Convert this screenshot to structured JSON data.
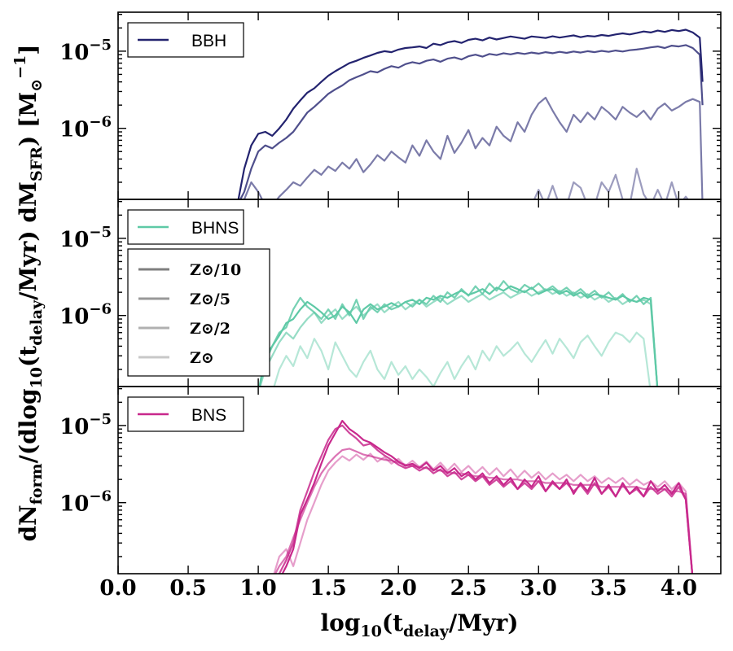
{
  "chart_data": {
    "type": "line",
    "xlabel": "log10(t_delay/Myr)",
    "ylabel": "dN_form/(dlog10(t_delay/Myr) dM_SFR)  [M_sun^-1]",
    "x_ticks": [
      "0.0",
      "0.5",
      "1.0",
      "1.5",
      "2.0",
      "2.5",
      "3.0",
      "3.5",
      "4.0"
    ],
    "xlim": [
      0.0,
      4.3
    ],
    "ylim": [
      1.2e-07,
      3.2e-05
    ],
    "y_ticks": [
      {
        "value": 1e-05,
        "base": "10",
        "exp": "−5"
      },
      {
        "value": 1e-06,
        "base": "10",
        "exp": "−6"
      }
    ],
    "metallicity_legend": [
      {
        "label": "Z⊙/10",
        "color": "#7f7f7f"
      },
      {
        "label": "Z⊙/5",
        "color": "#999999"
      },
      {
        "label": "Z⊙/2",
        "color": "#b0b0b0"
      },
      {
        "label": "Z⊙",
        "color": "#c8c8c8"
      }
    ],
    "x_sample": [
      0.85,
      0.9,
      0.95,
      1.0,
      1.05,
      1.1,
      1.15,
      1.2,
      1.25,
      1.3,
      1.35,
      1.4,
      1.45,
      1.5,
      1.55,
      1.6,
      1.65,
      1.7,
      1.75,
      1.8,
      1.85,
      1.9,
      1.95,
      2.0,
      2.05,
      2.1,
      2.15,
      2.2,
      2.25,
      2.3,
      2.35,
      2.4,
      2.45,
      2.5,
      2.55,
      2.6,
      2.65,
      2.7,
      2.75,
      2.8,
      2.85,
      2.9,
      2.95,
      3.0,
      3.05,
      3.1,
      3.15,
      3.2,
      3.25,
      3.3,
      3.35,
      3.4,
      3.45,
      3.5,
      3.55,
      3.6,
      3.65,
      3.7,
      3.75,
      3.8,
      3.85,
      3.9,
      3.95,
      4.0,
      4.05,
      4.1,
      4.15,
      4.17
    ],
    "panels": [
      {
        "name": "BBH",
        "color": "#23236f",
        "series": [
          {
            "metallicity": "Z⊙/10",
            "opacity": 1.0,
            "x_start": 0.85,
            "values": [
              1e-07,
              3e-07,
              6e-07,
              8.5e-07,
              9e-07,
              8e-07,
              1e-06,
              1.3e-06,
              1.8e-06,
              2.3e-06,
              2.9e-06,
              3.3e-06,
              4e-06,
              4.8e-06,
              5.5e-06,
              6.2e-06,
              7e-06,
              7.5e-06,
              8.2e-06,
              8.8e-06,
              9.5e-06,
              1e-05,
              9.7e-06,
              1.05e-05,
              1.1e-05,
              1.12e-05,
              1.15e-05,
              1.1e-05,
              1.25e-05,
              1.2e-05,
              1.3e-05,
              1.35e-05,
              1.28e-05,
              1.4e-05,
              1.45e-05,
              1.38e-05,
              1.5e-05,
              1.42e-05,
              1.48e-05,
              1.55e-05,
              1.5e-05,
              1.45e-05,
              1.55e-05,
              1.52e-05,
              1.48e-05,
              1.56e-05,
              1.5e-05,
              1.55e-05,
              1.6e-05,
              1.52e-05,
              1.58e-05,
              1.55e-05,
              1.62e-05,
              1.58e-05,
              1.65e-05,
              1.7e-05,
              1.65e-05,
              1.72e-05,
              1.8e-05,
              1.75e-05,
              1.85e-05,
              1.78e-05,
              1.88e-05,
              1.82e-05,
              1.9e-05,
              1.75e-05,
              1.5e-05,
              4e-06
            ]
          },
          {
            "metallicity": "Z⊙/5",
            "opacity": 0.8,
            "x_start": 0.85,
            "values": [
              1e-07,
              1.5e-07,
              3e-07,
              5e-07,
              6e-07,
              5.5e-07,
              6.5e-07,
              7.5e-07,
              9e-07,
              1.2e-06,
              1.6e-06,
              1.9e-06,
              2.3e-06,
              2.8e-06,
              3.2e-06,
              3.6e-06,
              4.2e-06,
              4.6e-06,
              5e-06,
              5.5e-06,
              5.3e-06,
              5.9e-06,
              6.4e-06,
              6.1e-06,
              6.8e-06,
              7.2e-06,
              6.9e-06,
              7.5e-06,
              7.8e-06,
              7.3e-06,
              8e-06,
              8.3e-06,
              7.8e-06,
              8.6e-06,
              9e-06,
              8.5e-06,
              9.2e-06,
              8.9e-06,
              9.4e-06,
              9.1e-06,
              9.5e-06,
              9.2e-06,
              9.6e-06,
              9.3e-06,
              9.7e-06,
              9.4e-06,
              9.8e-06,
              9.5e-06,
              9.9e-06,
              9.6e-06,
              1e-05,
              9.7e-06,
              1.01e-05,
              9.8e-06,
              1.02e-05,
              9.9e-06,
              1.03e-05,
              1.05e-05,
              1.08e-05,
              1.12e-05,
              1.15e-05,
              1.1e-05,
              1.18e-05,
              1.15e-05,
              1.2e-05,
              1.1e-05,
              9e-06,
              2e-06
            ]
          },
          {
            "metallicity": "Z⊙/2",
            "opacity": 0.6,
            "x_start": 0.85,
            "values": [
              1e-07,
              1.2e-07,
              2e-07,
              1.5e-07,
              1e-07,
              1e-07,
              1.3e-07,
              1.6e-07,
              2e-07,
              1.8e-07,
              2.3e-07,
              2.9e-07,
              2.5e-07,
              3.2e-07,
              2.8e-07,
              3.6e-07,
              3e-07,
              4e-07,
              2.7e-07,
              3.4e-07,
              4.5e-07,
              3.8e-07,
              5e-07,
              4.2e-07,
              3.6e-07,
              6e-07,
              4.4e-07,
              7e-07,
              5e-07,
              4e-07,
              8e-07,
              4.8e-07,
              6.5e-07,
              9.5e-07,
              5.5e-07,
              7.5e-07,
              6e-07,
              1.05e-06,
              8e-07,
              6.8e-07,
              1.2e-06,
              9e-07,
              1.5e-06,
              2.1e-06,
              2.5e-06,
              1.7e-06,
              1.2e-06,
              9e-07,
              1.5e-06,
              1.2e-06,
              1.6e-06,
              1.3e-06,
              1.9e-06,
              1.6e-06,
              1.3e-06,
              1.9e-06,
              1.6e-06,
              1.4e-06,
              1.7e-06,
              1.3e-06,
              1.8e-06,
              2.1e-06,
              1.7e-06,
              1.9e-06,
              2.2e-06,
              2.4e-06,
              2.2e-06,
              1e-07
            ]
          },
          {
            "metallicity": "Z⊙",
            "opacity": 0.45,
            "x_start": 2.95,
            "values": [
              1e-07,
              1.6e-07,
              1e-07,
              1.8e-07,
              1e-07,
              1e-07,
              2e-07,
              1.7e-07,
              1e-07,
              1e-07,
              2e-07,
              1.5e-07,
              2.5e-07,
              1.2e-07,
              1e-07,
              3e-07,
              1.4e-07,
              1e-07,
              1.6e-07,
              1e-07,
              2e-07,
              1e-07,
              1.3e-07,
              1e-07
            ]
          }
        ]
      },
      {
        "name": "BHNS",
        "color": "#5ec9a6",
        "series": [
          {
            "metallicity": "Z⊙/10",
            "opacity": 1.0,
            "x_start": 1.0,
            "values": [
              1e-07,
              3e-07,
              4e-07,
              5.5e-07,
              8e-07,
              9e-07,
              1.2e-06,
              1.5e-06,
              1.3e-06,
              1.1e-06,
              9e-07,
              1e-06,
              1.3e-06,
              1.1e-06,
              8e-07,
              1.2e-06,
              1.4e-06,
              1.2e-06,
              1.3e-06,
              1.45e-06,
              1.3e-06,
              1.5e-06,
              1.6e-06,
              1.4e-06,
              1.7e-06,
              1.6e-06,
              1.8e-06,
              1.7e-06,
              1.9e-06,
              2.1e-06,
              1.85e-06,
              2e-06,
              2.2e-06,
              1.9e-06,
              2.3e-06,
              2.1e-06,
              2.4e-06,
              2.2e-06,
              2e-06,
              2.3e-06,
              1.9e-06,
              2.1e-06,
              2.2e-06,
              1.9e-06,
              2.1e-06,
              1.8e-06,
              2e-06,
              1.7e-06,
              1.9e-06,
              1.8e-06,
              1.7e-06,
              1.6e-06,
              1.8e-06,
              1.6e-06,
              1.5e-06,
              1.7e-06,
              1.6e-06,
              1e-07
            ]
          },
          {
            "metallicity": "Z⊙/5",
            "opacity": 0.85,
            "x_start": 1.0,
            "values": [
              1e-07,
              2.5e-07,
              4e-07,
              6e-07,
              7e-07,
              1.2e-06,
              1.7e-06,
              1.3e-06,
              1.1e-06,
              9e-07,
              1.2e-06,
              9e-07,
              1.4e-06,
              1e-06,
              1.6e-06,
              9e-07,
              1.3e-06,
              1.1e-06,
              1.4e-06,
              1.2e-06,
              1.3e-06,
              1.5e-06,
              1.3e-06,
              1.6e-06,
              1.4e-06,
              1.8e-06,
              1.5e-06,
              2e-06,
              1.7e-06,
              2.2e-06,
              1.8e-06,
              2.4e-06,
              1.9e-06,
              2.6e-06,
              2.1e-06,
              2.8e-06,
              2.2e-06,
              2e-06,
              2.5e-06,
              2.2e-06,
              2.6e-06,
              2.1e-06,
              2.4e-06,
              2e-06,
              2.3e-06,
              1.9e-06,
              2.2e-06,
              1.8e-06,
              2.1e-06,
              1.7e-06,
              2e-06,
              1.6e-06,
              1.9e-06,
              1.5e-06,
              1.8e-06,
              1.4e-06,
              1.7e-06,
              1e-07
            ]
          },
          {
            "metallicity": "Z⊙/2",
            "opacity": 0.65,
            "x_start": 1.0,
            "values": [
              1e-07,
              2e-07,
              3e-07,
              4.5e-07,
              6e-07,
              5e-07,
              7e-07,
              9e-07,
              1.1e-06,
              8e-07,
              1e-06,
              1.2e-06,
              9e-07,
              1.1e-06,
              1.3e-06,
              1e-06,
              1.2e-06,
              1.4e-06,
              1.1e-06,
              1.3e-06,
              1.5e-06,
              1.2e-06,
              1.4e-06,
              1.6e-06,
              1.3e-06,
              1.5e-06,
              1.7e-06,
              1.4e-06,
              1.6e-06,
              1.8e-06,
              1.5e-06,
              1.7e-06,
              1.9e-06,
              1.6e-06,
              1.8e-06,
              2e-06,
              1.7e-06,
              1.9e-06,
              2.1e-06,
              1.8e-06,
              2e-06,
              2.2e-06,
              1.9e-06,
              2.1e-06,
              1.8e-06,
              2e-06,
              1.7e-06,
              1.9e-06,
              1.6e-06,
              1.8e-06,
              1.5e-06,
              1.7e-06,
              1.4e-06,
              1.6e-06,
              1.5e-06,
              1.6e-06,
              1.4e-06,
              1e-07
            ]
          },
          {
            "metallicity": "Z⊙",
            "opacity": 0.45,
            "x_start": 1.1,
            "values": [
              1e-07,
              2e-07,
              3e-07,
              2.2e-07,
              4e-07,
              2.8e-07,
              5e-07,
              3.5e-07,
              2e-07,
              4.5e-07,
              3e-07,
              2e-07,
              1.6e-07,
              2.5e-07,
              3.5e-07,
              2e-07,
              1.5e-07,
              2.5e-07,
              1.7e-07,
              2.2e-07,
              1.5e-07,
              2e-07,
              1.6e-07,
              1.2e-07,
              1.8e-07,
              2.5e-07,
              1.5e-07,
              2.2e-07,
              3e-07,
              2e-07,
              3.5e-07,
              2.6e-07,
              4e-07,
              3e-07,
              3.6e-07,
              4.5e-07,
              3.2e-07,
              2.5e-07,
              3.5e-07,
              4.8e-07,
              3.2e-07,
              5e-07,
              3.8e-07,
              2.8e-07,
              4.5e-07,
              5.5e-07,
              4e-07,
              3e-07,
              4.5e-07,
              6e-07,
              5.5e-07,
              4.5e-07,
              6e-07,
              5e-07,
              1e-07
            ]
          }
        ]
      },
      {
        "name": "BNS",
        "color": "#c8288c",
        "series": [
          {
            "metallicity": "Z⊙/10",
            "opacity": 1.0,
            "x_start": 1.1,
            "values": [
              1e-07,
              1e-07,
              1.5e-07,
              2.5e-07,
              7e-07,
              1.1e-06,
              1.8e-06,
              3.2e-06,
              5.5e-06,
              8e-06,
              1.15e-05,
              9e-06,
              7.8e-06,
              6.5e-06,
              6e-06,
              5.2e-06,
              4.5e-06,
              4e-06,
              3.4e-06,
              3e-06,
              3.2e-06,
              2.8e-06,
              3.3e-06,
              2.6e-06,
              3e-06,
              2.4e-06,
              2.8e-06,
              2.2e-06,
              2.5e-06,
              2e-06,
              2.4e-06,
              1.8e-06,
              2.2e-06,
              1.7e-06,
              2.1e-06,
              1.5e-06,
              2e-06,
              1.6e-06,
              2.2e-06,
              1.4e-06,
              1.9e-06,
              1.5e-06,
              2e-06,
              1.3e-06,
              1.8e-06,
              1.4e-06,
              2.1e-06,
              1.3e-06,
              1.7e-06,
              1.2e-06,
              1.8e-06,
              1.3e-06,
              1.6e-06,
              1.2e-06,
              1.9e-06,
              1.4e-06,
              1.7e-06,
              1.3e-06,
              1.8e-06,
              1.1e-06,
              1e-07
            ]
          },
          {
            "metallicity": "Z⊙/5",
            "opacity": 0.85,
            "x_start": 1.1,
            "values": [
              1e-07,
              1.2e-07,
              1.8e-07,
              3e-07,
              8e-07,
              1.4e-06,
              2.5e-06,
              4e-06,
              6.5e-06,
              9e-06,
              1e-05,
              8e-06,
              6.8e-06,
              5.5e-06,
              5.8e-06,
              4.8e-06,
              4.1e-06,
              3.6e-06,
              3.1e-06,
              2.8e-06,
              3e-06,
              2.6e-06,
              2.9e-06,
              2.4e-06,
              2.7e-06,
              2.2e-06,
              2.5e-06,
              2e-06,
              2.3e-06,
              1.9e-06,
              2.2e-06,
              1.7e-06,
              2e-06,
              1.6e-06,
              1.9e-06,
              1.5e-06,
              1.8e-06,
              1.5e-06,
              1.9e-06,
              1.4e-06,
              1.8e-06,
              1.5e-06,
              1.8e-06,
              1.4e-06,
              1.7e-06,
              1.3e-06,
              1.8e-06,
              1.3e-06,
              1.6e-06,
              1.2e-06,
              1.7e-06,
              1.3e-06,
              1.5e-06,
              1.2e-06,
              1.6e-06,
              1.3e-06,
              1.5e-06,
              1.2e-06,
              1.6e-06,
              1.1e-06,
              1e-07
            ]
          },
          {
            "metallicity": "Z⊙/2",
            "opacity": 0.65,
            "x_start": 1.1,
            "values": [
              1e-07,
              1.5e-07,
              2e-07,
              3.5e-07,
              6e-07,
              1e-06,
              1.6e-06,
              2.4e-06,
              3.2e-06,
              4e-06,
              4.8e-06,
              5e-06,
              4.6e-06,
              4.2e-06,
              4e-06,
              3.8e-06,
              3.6e-06,
              3.5e-06,
              3.3e-06,
              3.1e-06,
              3e-06,
              2.9e-06,
              2.8e-06,
              2.7e-06,
              2.6e-06,
              2.5e-06,
              2.4e-06,
              2.4e-06,
              2.3e-06,
              2.2e-06,
              2.2e-06,
              2.1e-06,
              2.1e-06,
              2e-06,
              2e-06,
              2e-06,
              1.9e-06,
              1.9e-06,
              1.9e-06,
              1.8e-06,
              1.8e-06,
              1.8e-06,
              1.8e-06,
              1.7e-06,
              1.7e-06,
              1.7e-06,
              1.7e-06,
              1.6e-06,
              1.6e-06,
              1.6e-06,
              1.6e-06,
              1.6e-06,
              1.6e-06,
              1.5e-06,
              1.5e-06,
              1.5e-06,
              1.5e-06,
              1.4e-06,
              1.4e-06,
              1.3e-06,
              1e-07
            ]
          },
          {
            "metallicity": "Z⊙",
            "opacity": 0.45,
            "x_start": 1.1,
            "values": [
              1e-07,
              2e-07,
              2.5e-07,
              1.5e-07,
              3e-07,
              6e-07,
              1e-06,
              1.7e-06,
              2.6e-06,
              3.3e-06,
              4e-06,
              3.5e-06,
              4.2e-06,
              3.6e-06,
              4.3e-06,
              3.4e-06,
              3.9e-06,
              3.2e-06,
              3.7e-06,
              3e-06,
              3.5e-06,
              2.9e-06,
              3.4e-06,
              2.7e-06,
              3.3e-06,
              2.6e-06,
              3.2e-06,
              2.5e-06,
              3e-06,
              2.4e-06,
              2.9e-06,
              2.3e-06,
              2.8e-06,
              2.2e-06,
              2.7e-06,
              2.1e-06,
              2.6e-06,
              2.1e-06,
              2.5e-06,
              2e-06,
              2.4e-06,
              2e-06,
              2.3e-06,
              1.9e-06,
              2.3e-06,
              1.9e-06,
              2.2e-06,
              1.8e-06,
              2.1e-06,
              1.8e-06,
              2.1e-06,
              1.7e-06,
              2e-06,
              1.7e-06,
              1.9e-06,
              1.6e-06,
              1.9e-06,
              1.5e-06,
              1.8e-06,
              1.4e-06,
              1e-07
            ]
          }
        ]
      }
    ]
  }
}
